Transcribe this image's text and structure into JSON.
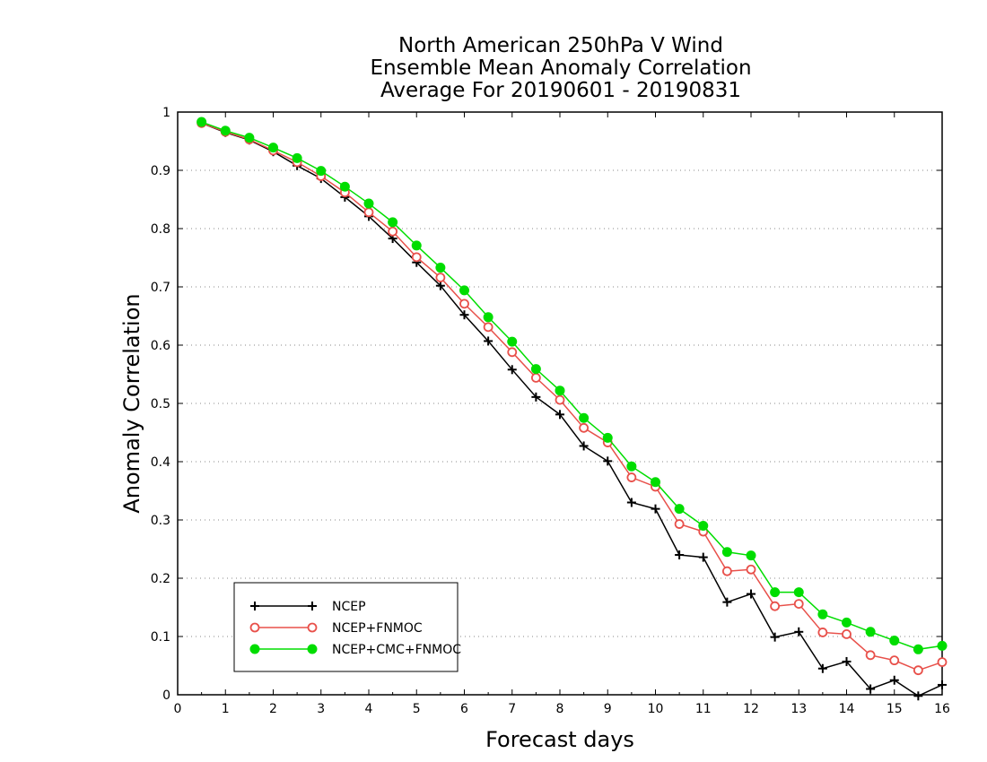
{
  "chart_data": {
    "type": "line",
    "title_lines": [
      "North American 250hPa V Wind",
      "Ensemble Mean Anomaly Correlation",
      "Average For 20190601 - 20190831"
    ],
    "xlabel": "Forecast days",
    "ylabel": "Anomaly Correlation",
    "xlim": [
      0,
      16
    ],
    "ylim": [
      0,
      1
    ],
    "x_ticks": [
      "0",
      "1",
      "2",
      "3",
      "4",
      "5",
      "6",
      "7",
      "8",
      "9",
      "10",
      "11",
      "12",
      "13",
      "14",
      "15",
      "16"
    ],
    "y_ticks": [
      "0",
      "0.1",
      "0.2",
      "0.3",
      "0.4",
      "0.5",
      "0.6",
      "0.7",
      "0.8",
      "0.9",
      "1"
    ],
    "grid": "horizontal dotted",
    "legend_position": "bottom-left",
    "x": [
      0.5,
      1,
      1.5,
      2,
      2.5,
      3,
      3.5,
      4,
      4.5,
      5,
      5.5,
      6,
      6.5,
      7,
      7.5,
      8,
      8.5,
      9,
      9.5,
      10,
      10.5,
      11,
      11.5,
      12,
      12.5,
      13,
      13.5,
      14,
      14.5,
      15,
      15.5,
      16
    ],
    "series": [
      {
        "name": "NCEP",
        "color": "#000000",
        "marker": "plus",
        "values": [
          0.981,
          0.965,
          0.952,
          0.932,
          0.908,
          0.886,
          0.854,
          0.821,
          0.783,
          0.742,
          0.702,
          0.652,
          0.607,
          0.558,
          0.511,
          0.481,
          0.427,
          0.401,
          0.33,
          0.319,
          0.24,
          0.236,
          0.159,
          0.173,
          0.099,
          0.108,
          0.045,
          0.057,
          0.01,
          0.025,
          -0.002,
          0.017
        ]
      },
      {
        "name": "NCEP+FNMOC",
        "color": "#e8504a",
        "marker": "open-circle",
        "values": [
          0.981,
          0.966,
          0.953,
          0.934,
          0.914,
          0.89,
          0.862,
          0.828,
          0.795,
          0.751,
          0.716,
          0.671,
          0.631,
          0.588,
          0.544,
          0.506,
          0.458,
          0.433,
          0.373,
          0.357,
          0.293,
          0.28,
          0.212,
          0.215,
          0.152,
          0.156,
          0.107,
          0.104,
          0.068,
          0.059,
          0.042,
          0.056
        ]
      },
      {
        "name": "NCEP+CMC+FNMOC",
        "color": "#00dd00",
        "marker": "filled-circle",
        "values": [
          0.983,
          0.968,
          0.956,
          0.939,
          0.921,
          0.899,
          0.872,
          0.843,
          0.811,
          0.771,
          0.733,
          0.694,
          0.648,
          0.606,
          0.559,
          0.522,
          0.475,
          0.441,
          0.392,
          0.365,
          0.319,
          0.29,
          0.245,
          0.239,
          0.176,
          0.176,
          0.138,
          0.124,
          0.108,
          0.093,
          0.078,
          0.084
        ]
      }
    ]
  }
}
